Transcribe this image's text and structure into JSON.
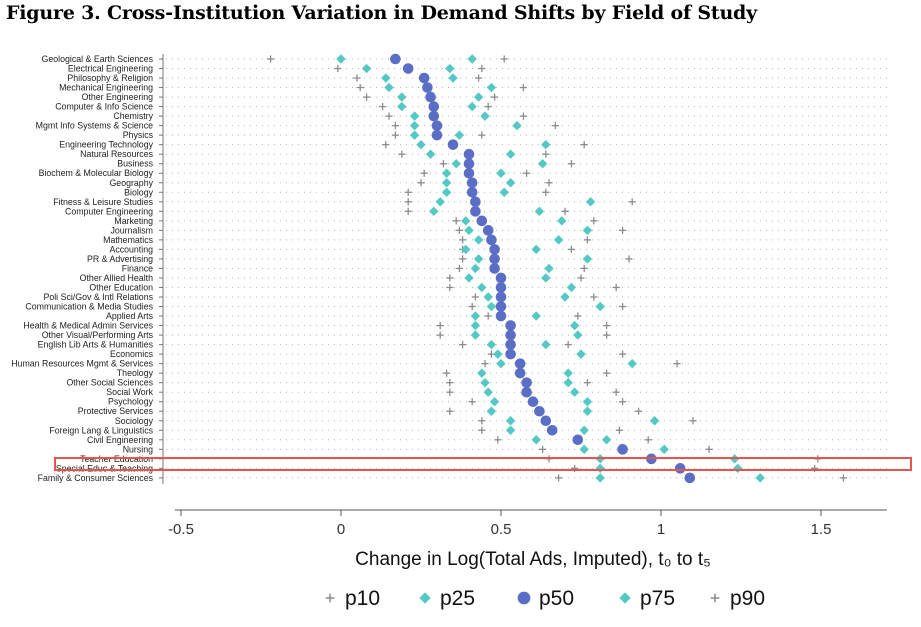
{
  "title": "Figure 3. Cross-Institution Variation in Demand Shifts by Field of Study",
  "chart_data": {
    "type": "scatter",
    "xlabel": "Change in Log(Total Ads, Imputed), t₀ to t₅",
    "xlim": [
      -0.5,
      1.7
    ],
    "xticks": [
      "-0.5",
      "0",
      "0.5",
      "1",
      "1.5"
    ],
    "xtick_values": [
      -0.5,
      0,
      0.5,
      1,
      1.5
    ],
    "grid": "dotted horizontal row guides",
    "legend_position": "bottom",
    "highlighted_category": "Teacher Education",
    "highlight_color": "#e8534f",
    "categories": [
      "Geological & Earth Sciences",
      "Electrical Engineering",
      "Philosophy & Religion",
      "Mechanical Engineering",
      "Other Engineering",
      "Computer & Info Science",
      "Chemistry",
      "Mgmt Info Systems & Science",
      "Physics",
      "Engineering Technology",
      "Natural Resources",
      "Business",
      "Biochem & Molecular Biology",
      "Geography",
      "Biology",
      "Fitness & Leisure Studies",
      "Computer Engineering",
      "Marketing",
      "Journalism",
      "Mathematics",
      "Accounting",
      "PR & Advertising",
      "Finance",
      "Other Allied Health",
      "Other Education",
      "Poli Sci/Gov & Intl Relations",
      "Communication & Media Studies",
      "Applied Arts",
      "Health & Medical Admin Services",
      "Other Visual/Performing Arts",
      "English Lib Arts & Humanities",
      "Economics",
      "Human Resources Mgmt & Services",
      "Theology",
      "Other Social Sciences",
      "Social Work",
      "Psychology",
      "Protective Services",
      "Sociology",
      "Foreign Lang & Linguistics",
      "Civil Engineering",
      "Nursing",
      "Teacher Education",
      "Special Educ & Teaching",
      "Family & Consumer Sciences"
    ],
    "series": [
      {
        "name": "p10",
        "marker": "plus",
        "color": "#8c8c8c",
        "values": [
          -0.22,
          -0.01,
          0.05,
          0.06,
          0.08,
          0.13,
          0.15,
          0.17,
          0.17,
          0.14,
          0.19,
          0.32,
          0.26,
          0.25,
          0.21,
          0.21,
          0.21,
          0.36,
          0.37,
          0.38,
          0.38,
          0.38,
          0.37,
          0.34,
          0.34,
          0.42,
          0.41,
          0.46,
          0.31,
          0.31,
          0.38,
          0.47,
          0.45,
          0.33,
          0.34,
          0.34,
          0.41,
          0.34,
          0.44,
          0.44,
          0.49,
          0.63,
          0.65,
          0.73,
          0.68
        ]
      },
      {
        "name": "p25",
        "marker": "diamond",
        "color": "#54c8c4",
        "values": [
          0.0,
          0.08,
          0.14,
          0.15,
          0.19,
          0.19,
          0.23,
          0.23,
          0.23,
          0.25,
          0.28,
          0.36,
          0.33,
          0.33,
          0.33,
          0.31,
          0.29,
          0.39,
          0.4,
          0.43,
          0.39,
          0.43,
          0.42,
          0.4,
          0.44,
          0.46,
          0.47,
          0.42,
          0.42,
          0.42,
          0.47,
          0.49,
          0.5,
          0.44,
          0.45,
          0.46,
          0.48,
          0.47,
          0.53,
          0.53,
          0.61,
          0.76,
          0.81,
          0.81,
          0.81
        ]
      },
      {
        "name": "p50",
        "marker": "circle",
        "color": "#5b6ec6",
        "values": [
          0.17,
          0.21,
          0.26,
          0.27,
          0.28,
          0.29,
          0.29,
          0.3,
          0.3,
          0.35,
          0.4,
          0.4,
          0.4,
          0.41,
          0.41,
          0.42,
          0.42,
          0.44,
          0.46,
          0.47,
          0.48,
          0.48,
          0.48,
          0.5,
          0.5,
          0.5,
          0.5,
          0.5,
          0.53,
          0.53,
          0.53,
          0.53,
          0.56,
          0.56,
          0.58,
          0.58,
          0.6,
          0.62,
          0.64,
          0.66,
          0.74,
          0.88,
          0.97,
          1.06,
          1.09
        ]
      },
      {
        "name": "p75",
        "marker": "diamond",
        "color": "#54c8c4",
        "values": [
          0.41,
          0.34,
          0.35,
          0.47,
          0.43,
          0.41,
          0.45,
          0.55,
          0.37,
          0.64,
          0.53,
          0.63,
          0.5,
          0.53,
          0.51,
          0.78,
          0.62,
          0.69,
          0.77,
          0.68,
          0.61,
          0.77,
          0.65,
          0.64,
          0.72,
          0.7,
          0.81,
          0.61,
          0.73,
          0.74,
          0.64,
          0.75,
          0.91,
          0.71,
          0.71,
          0.73,
          0.77,
          0.77,
          0.98,
          0.76,
          0.83,
          1.01,
          1.23,
          1.24,
          1.31
        ]
      },
      {
        "name": "p90",
        "marker": "plus",
        "color": "#8c8c8c",
        "values": [
          0.51,
          0.44,
          0.43,
          0.57,
          0.48,
          0.46,
          0.57,
          0.67,
          0.44,
          0.76,
          0.64,
          0.72,
          0.58,
          0.65,
          0.64,
          0.91,
          0.7,
          0.79,
          0.88,
          0.77,
          0.72,
          0.9,
          0.76,
          0.75,
          0.86,
          0.79,
          0.88,
          0.74,
          0.83,
          0.83,
          0.71,
          0.88,
          1.05,
          0.83,
          0.77,
          0.86,
          0.88,
          0.93,
          1.1,
          0.87,
          0.96,
          1.15,
          1.49,
          1.48,
          1.57
        ]
      }
    ]
  }
}
